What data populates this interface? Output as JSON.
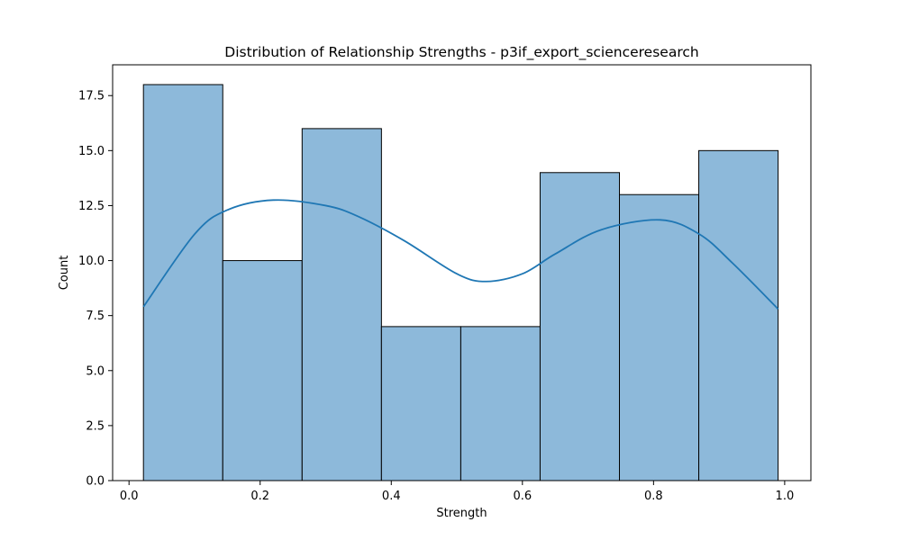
{
  "chart_data": {
    "type": "bar",
    "subtype": "histogram-with-kde",
    "title": "Distribution of Relationship Strengths - p3if_export_scienceresearch",
    "xlabel": "Strength",
    "ylabel": "Count",
    "xlim": [
      -0.025,
      1.04
    ],
    "ylim": [
      0,
      18.9
    ],
    "x_ticks": [
      0.0,
      0.2,
      0.4,
      0.6,
      0.8,
      1.0
    ],
    "x_tick_labels": [
      "0.0",
      "0.2",
      "0.4",
      "0.6",
      "0.8",
      "1.0"
    ],
    "y_ticks": [
      0,
      2.5,
      5,
      7.5,
      10,
      12.5,
      15,
      17.5
    ],
    "y_tick_labels": [
      "0.0",
      "2.5",
      "5.0",
      "7.5",
      "10.0",
      "12.5",
      "15.0",
      "17.5"
    ],
    "bins": [
      0.022,
      0.143,
      0.264,
      0.385,
      0.506,
      0.627,
      0.748,
      0.869,
      0.99
    ],
    "counts": [
      18,
      10,
      16,
      7,
      7,
      14,
      13,
      15
    ],
    "kde": {
      "x": [
        0.022,
        0.1,
        0.15,
        0.22,
        0.3,
        0.35,
        0.42,
        0.5,
        0.545,
        0.6,
        0.65,
        0.72,
        0.81,
        0.87,
        0.92,
        0.99
      ],
      "y": [
        7.9,
        11.2,
        12.3,
        12.75,
        12.5,
        12.0,
        10.9,
        9.4,
        9.05,
        9.4,
        10.3,
        11.4,
        11.85,
        11.2,
        9.9,
        7.8
      ]
    },
    "grid": false,
    "legend": "none",
    "colors": {
      "bar_fill": "#8db9da",
      "bar_edge": "#000000",
      "kde_line": "#1f77b4"
    }
  }
}
